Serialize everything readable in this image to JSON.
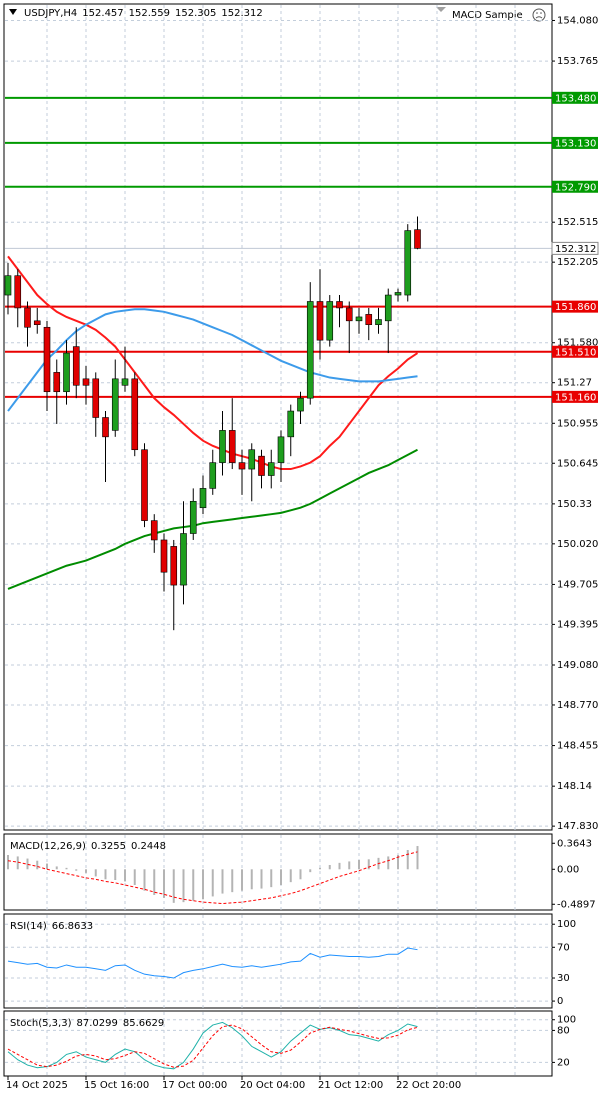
{
  "chart_data": [
    {
      "type": "candlestick",
      "title": "USDJPY,H4",
      "expert": "MACD Sample",
      "categories": [
        "14 Oct 2025",
        null,
        null,
        null,
        null,
        null,
        null,
        null,
        "15 Oct 16:00",
        null,
        null,
        null,
        null,
        null,
        null,
        null,
        "17 Oct 00:00",
        null,
        null,
        null,
        null,
        null,
        null,
        null,
        "20 Oct 04:00",
        null,
        null,
        null,
        null,
        null,
        null,
        null,
        "21 Oct 12:00",
        null,
        null,
        null,
        null,
        null,
        null,
        null,
        "22 Oct 20:00",
        null,
        null
      ],
      "open": [
        151.95,
        152.1,
        151.85,
        151.75,
        151.7,
        151.35,
        151.2,
        151.55,
        151.3,
        151.3,
        151.0,
        150.9,
        151.25,
        151.3,
        150.75,
        150.2,
        150.05,
        150.0,
        149.7,
        150.1,
        150.3,
        150.45,
        150.65,
        150.9,
        150.65,
        150.6,
        150.7,
        150.55,
        150.65,
        150.85,
        151.05,
        151.15,
        151.9,
        151.6,
        151.9,
        151.85,
        151.75,
        151.8,
        151.72,
        151.75,
        151.95,
        151.95,
        152.457
      ],
      "high": [
        152.2,
        152.15,
        151.9,
        151.85,
        151.75,
        151.45,
        151.6,
        151.7,
        151.4,
        151.35,
        151.05,
        151.45,
        151.55,
        151.35,
        150.8,
        150.25,
        150.1,
        150.05,
        150.35,
        150.45,
        150.55,
        150.75,
        151.05,
        151.15,
        150.75,
        150.8,
        150.75,
        150.75,
        150.9,
        151.1,
        151.2,
        152.05,
        152.15,
        151.95,
        151.95,
        151.9,
        151.85,
        151.85,
        151.85,
        152.0,
        152.0,
        152.5,
        152.559
      ],
      "low": [
        151.8,
        151.7,
        151.55,
        151.65,
        151.05,
        150.95,
        151.1,
        151.15,
        151.1,
        150.85,
        150.5,
        150.85,
        151.2,
        150.7,
        150.15,
        149.95,
        149.65,
        149.35,
        149.55,
        150.05,
        150.25,
        150.4,
        150.55,
        150.6,
        150.4,
        150.35,
        150.45,
        150.45,
        150.5,
        150.7,
        150.95,
        151.1,
        151.45,
        151.55,
        151.7,
        151.5,
        151.65,
        151.6,
        151.65,
        151.5,
        151.9,
        151.9,
        152.305
      ],
      "close": [
        152.1,
        151.85,
        151.7,
        151.72,
        151.2,
        151.2,
        151.5,
        151.25,
        151.25,
        151.0,
        150.85,
        151.3,
        151.3,
        150.75,
        150.2,
        150.05,
        149.8,
        149.7,
        150.1,
        150.35,
        150.45,
        150.65,
        150.9,
        150.65,
        150.6,
        150.75,
        150.55,
        150.65,
        150.85,
        151.05,
        151.15,
        151.9,
        151.6,
        151.9,
        151.85,
        151.75,
        151.78,
        151.72,
        151.76,
        151.95,
        151.97,
        152.45,
        152.312
      ],
      "up_color": "#1e9e1e",
      "down_color": "#e00000",
      "series": [
        {
          "color": "#ff1a1a",
          "values": [
            152.25,
            152.15,
            152.05,
            151.95,
            151.88,
            151.82,
            151.78,
            151.75,
            151.72,
            151.68,
            151.62,
            151.55,
            151.45,
            151.35,
            151.25,
            151.15,
            151.08,
            151.02,
            150.95,
            150.88,
            150.82,
            150.78,
            150.75,
            150.72,
            150.7,
            150.68,
            150.65,
            150.62,
            150.6,
            150.6,
            150.62,
            150.65,
            150.7,
            150.78,
            150.85,
            150.95,
            151.05,
            151.15,
            151.25,
            151.32,
            151.38,
            151.45,
            151.5
          ]
        },
        {
          "color": "#3d9bea",
          "values": [
            151.05,
            151.15,
            151.25,
            151.35,
            151.45,
            151.52,
            151.6,
            151.67,
            151.72,
            151.76,
            151.8,
            151.82,
            151.83,
            151.84,
            151.84,
            151.83,
            151.82,
            151.8,
            151.78,
            151.76,
            151.73,
            151.7,
            151.67,
            151.64,
            151.6,
            151.56,
            151.52,
            151.48,
            151.44,
            151.41,
            151.38,
            151.35,
            151.33,
            151.31,
            151.3,
            151.29,
            151.28,
            151.28,
            151.28,
            151.29,
            151.3,
            151.31,
            151.32
          ]
        },
        {
          "color": "#008c00",
          "values": [
            149.67,
            149.7,
            149.73,
            149.76,
            149.79,
            149.82,
            149.85,
            149.87,
            149.89,
            149.92,
            149.95,
            149.98,
            150.02,
            150.05,
            150.08,
            150.1,
            150.12,
            150.14,
            150.15,
            150.16,
            150.18,
            150.19,
            150.2,
            150.21,
            150.22,
            150.23,
            150.24,
            150.25,
            150.26,
            150.28,
            150.3,
            150.33,
            150.37,
            150.41,
            150.45,
            150.49,
            150.53,
            150.57,
            150.6,
            150.63,
            150.67,
            150.71,
            150.75
          ]
        }
      ],
      "levels": [
        {
          "value": 153.48,
          "label": "153.480",
          "color": "#009a00"
        },
        {
          "value": 153.13,
          "label": "153.130",
          "color": "#009a00"
        },
        {
          "value": 152.79,
          "label": "152.790",
          "color": "#009a00"
        },
        {
          "value": 151.86,
          "label": "151.860",
          "color": "#e80000"
        },
        {
          "value": 151.51,
          "label": "151.510",
          "color": "#e80000"
        },
        {
          "value": 151.16,
          "label": "151.160",
          "color": "#e80000"
        }
      ],
      "ylim": [
        147.8,
        154.2
      ],
      "yticks": [
        {
          "value": 154.08,
          "label": "154.080"
        },
        153.765,
        152.515,
        152.205,
        {
          "value": 151.58,
          "label": "151.580"
        },
        151.27,
        150.955,
        150.645,
        150.33,
        {
          "value": 150.02,
          "label": "150.020"
        },
        149.705,
        149.395,
        {
          "value": 149.08,
          "label": "149.080"
        },
        {
          "value": 148.77,
          "label": "148.770"
        },
        148.455,
        148.14,
        {
          "value": 147.83,
          "label": "147.830"
        }
      ],
      "grid": true
    },
    {
      "type": "macd",
      "title": "MACD(12,26,9)",
      "series": [
        {
          "color": "#b4b4b4",
          "values": [
            0.2,
            0.18,
            0.15,
            0.12,
            0.08,
            0.04,
            0.02,
            -0.02,
            -0.05,
            -0.1,
            -0.14,
            -0.15,
            -0.17,
            -0.22,
            -0.3,
            -0.36,
            -0.4,
            -0.47,
            -0.46,
            -0.44,
            -0.42,
            -0.38,
            -0.34,
            -0.32,
            -0.3,
            -0.28,
            -0.27,
            -0.25,
            -0.22,
            -0.18,
            -0.14,
            -0.04,
            0.02,
            0.06,
            0.09,
            0.11,
            0.13,
            0.14,
            0.16,
            0.18,
            0.2,
            0.27,
            0.3255
          ]
        },
        {
          "color": "#ff0000",
          "dashed": true,
          "values": [
            0.12,
            0.1,
            0.07,
            0.04,
            0.0,
            -0.03,
            -0.06,
            -0.09,
            -0.12,
            -0.14,
            -0.17,
            -0.19,
            -0.22,
            -0.25,
            -0.28,
            -0.32,
            -0.35,
            -0.39,
            -0.42,
            -0.44,
            -0.46,
            -0.47,
            -0.48,
            -0.47,
            -0.46,
            -0.44,
            -0.42,
            -0.4,
            -0.37,
            -0.34,
            -0.3,
            -0.25,
            -0.2,
            -0.15,
            -0.1,
            -0.06,
            -0.02,
            0.03,
            0.08,
            0.12,
            0.17,
            0.21,
            0.2448
          ]
        }
      ],
      "ylim": [
        -0.57,
        0.48
      ],
      "yticks": [
        0.3643,
        {
          "value": 0,
          "label": "0.00"
        },
        -0.4897
      ],
      "grid": false
    },
    {
      "type": "line",
      "title": "RSI(14)",
      "series": [
        {
          "color": "#1e90ff",
          "values": [
            52,
            50,
            48,
            49,
            44,
            43,
            47,
            44,
            44,
            42,
            40,
            46,
            47,
            40,
            35,
            33,
            32,
            30,
            37,
            40,
            42,
            45,
            48,
            45,
            44,
            46,
            44,
            46,
            48,
            51,
            52,
            62,
            57,
            60,
            59,
            58,
            58,
            57,
            58,
            61,
            61,
            69,
            66.8633
          ]
        }
      ],
      "ylim": [
        -9,
        112
      ],
      "yticks": [
        100,
        70,
        30,
        0
      ],
      "grid": true
    },
    {
      "type": "line",
      "title": "Stoch(5,3,3)",
      "series": [
        {
          "color": "#20b2aa",
          "values": [
            40,
            25,
            15,
            10,
            12,
            20,
            35,
            40,
            30,
            25,
            20,
            35,
            45,
            40,
            25,
            15,
            10,
            8,
            20,
            45,
            75,
            90,
            95,
            85,
            70,
            50,
            40,
            30,
            40,
            60,
            75,
            90,
            82,
            85,
            80,
            72,
            70,
            65,
            60,
            72,
            80,
            92,
            87.0299
          ]
        },
        {
          "color": "#ff0000",
          "dashed": true,
          "values": [
            45,
            35,
            25,
            15,
            12,
            15,
            22,
            32,
            35,
            32,
            25,
            27,
            33,
            40,
            37,
            27,
            17,
            11,
            13,
            24,
            47,
            70,
            87,
            90,
            83,
            68,
            53,
            40,
            37,
            43,
            58,
            75,
            82,
            86,
            82,
            79,
            74,
            69,
            65,
            66,
            71,
            81,
            85.6629
          ]
        }
      ],
      "ylim": [
        -5.5,
        114.5
      ],
      "yticks": [
        100,
        80,
        20
      ],
      "grid": true
    }
  ]
}
